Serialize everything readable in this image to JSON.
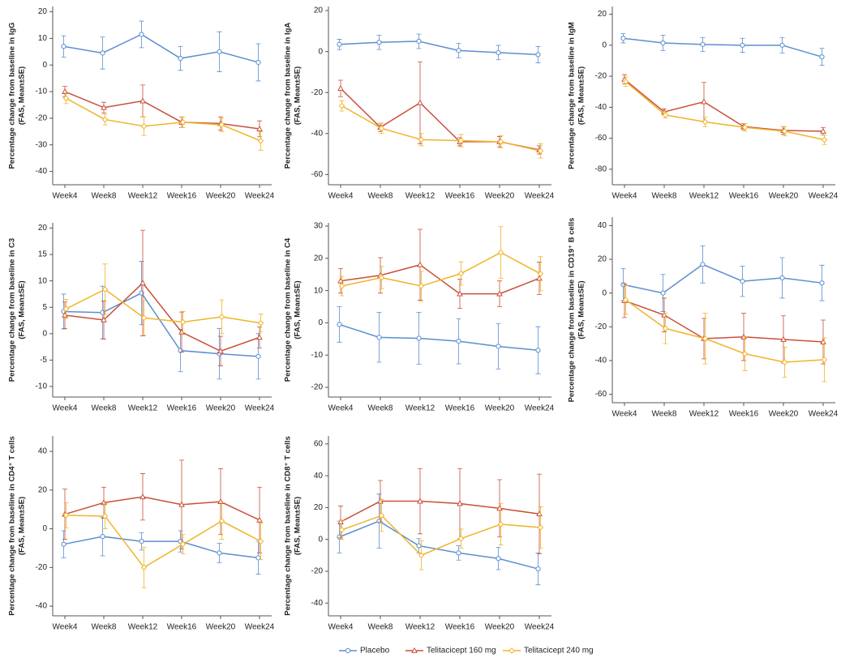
{
  "chart_data": [
    {
      "type": "line",
      "ylabel": [
        "Percentage change from baseline in IgG",
        "(FAS, Mean±SE)"
      ],
      "categories": [
        "Week4",
        "Week8",
        "Week12",
        "Week16",
        "Week20",
        "Week24"
      ],
      "ylim": [
        -45,
        22
      ],
      "yticks": [
        -40,
        -30,
        -20,
        -10,
        0,
        10,
        20
      ],
      "series": [
        {
          "name": "Placebo",
          "color": "#5b8fd0",
          "marker": "circle",
          "values": [
            7,
            4.5,
            11.5,
            2.5,
            5,
            1
          ],
          "errors": [
            4,
            6,
            5,
            4.5,
            7.5,
            7
          ]
        },
        {
          "name": "Telitacicept 160 mg",
          "color": "#c9503a",
          "marker": "triangle",
          "values": [
            -10,
            -16,
            -13.5,
            -21.5,
            -22,
            -24
          ],
          "errors": [
            2,
            2,
            6,
            2,
            2.5,
            3
          ]
        },
        {
          "name": "Telitacicept 240 mg",
          "color": "#f0b429",
          "marker": "diamond",
          "values": [
            -12.5,
            -20.5,
            -23,
            -21.5,
            -22.5,
            -28.5
          ],
          "errors": [
            2,
            2,
            3.5,
            2,
            2.5,
            3.5
          ]
        }
      ]
    },
    {
      "type": "line",
      "ylabel": [
        "Percentage change from baseline in IgA",
        "(FAS, Mean±SE)"
      ],
      "categories": [
        "Week4",
        "Week8",
        "Week12",
        "Week16",
        "Week20",
        "Week24"
      ],
      "ylim": [
        -65,
        22
      ],
      "yticks": [
        -60,
        -40,
        -20,
        0,
        20
      ],
      "series": [
        {
          "name": "Placebo",
          "color": "#5b8fd0",
          "marker": "circle",
          "values": [
            3.5,
            4.5,
            5,
            0.5,
            -0.5,
            -1.5
          ],
          "errors": [
            2.5,
            3.5,
            3.5,
            3.5,
            3.5,
            4
          ]
        },
        {
          "name": "Telitacicept 160 mg",
          "color": "#c9503a",
          "marker": "triangle",
          "values": [
            -18,
            -37,
            -25,
            -44,
            -44,
            -48
          ],
          "errors": [
            4,
            2,
            20,
            2,
            2.5,
            2
          ]
        },
        {
          "name": "Telitacicept 240 mg",
          "color": "#f0b429",
          "marker": "diamond",
          "values": [
            -26.5,
            -37.5,
            -43,
            -43.5,
            -44,
            -48.5
          ],
          "errors": [
            2.5,
            2.5,
            3,
            3,
            3,
            3.5
          ]
        }
      ]
    },
    {
      "type": "line",
      "ylabel": [
        "Percentage change from baseline in IgM",
        "(FAS, Mean±SE)"
      ],
      "categories": [
        "Week4",
        "Week8",
        "Week12",
        "Week16",
        "Week20",
        "Week24"
      ],
      "ylim": [
        -90,
        25
      ],
      "yticks": [
        -80,
        -60,
        -40,
        -20,
        0,
        20
      ],
      "series": [
        {
          "name": "Placebo",
          "color": "#5b8fd0",
          "marker": "circle",
          "values": [
            4.5,
            1.5,
            0.5,
            0,
            0,
            -7.5
          ],
          "errors": [
            3,
            5,
            4.5,
            4.5,
            5,
            5.5
          ]
        },
        {
          "name": "Telitacicept 160 mg",
          "color": "#c9503a",
          "marker": "triangle",
          "values": [
            -22,
            -43,
            -36.5,
            -52.5,
            -55,
            -55.5
          ],
          "errors": [
            3,
            2,
            12.5,
            2,
            2.5,
            2.5
          ]
        },
        {
          "name": "Telitacicept 240 mg",
          "color": "#f0b429",
          "marker": "diamond",
          "values": [
            -23.5,
            -45,
            -49.5,
            -53,
            -55.5,
            -61
          ],
          "errors": [
            3,
            2,
            3,
            2.5,
            3,
            3
          ]
        }
      ]
    },
    {
      "type": "line",
      "ylabel": [
        "Percentage change from baseline in C3",
        "(FAS, Mean±SE)"
      ],
      "categories": [
        "Week4",
        "Week8",
        "Week12",
        "Week16",
        "Week20",
        "Week24"
      ],
      "ylim": [
        -12,
        21
      ],
      "yticks": [
        -10,
        -5,
        0,
        5,
        10,
        15,
        20
      ],
      "series": [
        {
          "name": "Placebo",
          "color": "#5b8fd0",
          "marker": "circle",
          "values": [
            4.2,
            4,
            7.7,
            -3.2,
            -3.8,
            -4.3
          ],
          "errors": [
            3.3,
            5,
            6,
            4,
            4.8,
            4.3
          ]
        },
        {
          "name": "Telitacicept 160 mg",
          "color": "#c9503a",
          "marker": "triangle",
          "values": [
            3.5,
            2.6,
            9.6,
            0.3,
            -3.3,
            -0.7
          ],
          "errors": [
            2.5,
            3.6,
            10,
            3.8,
            2.8,
            2
          ]
        },
        {
          "name": "Telitacicept 240 mg",
          "color": "#f0b429",
          "marker": "diamond",
          "values": [
            4.7,
            8.4,
            3,
            2.2,
            3.2,
            2
          ],
          "errors": [
            1.8,
            4.8,
            3.3,
            2,
            3.2,
            1.7
          ]
        }
      ]
    },
    {
      "type": "line",
      "ylabel": [
        "Percentage change from baseline in C4",
        "(FAS, Mean±SE)"
      ],
      "categories": [
        "Week4",
        "Week8",
        "Week12",
        "Week16",
        "Week20",
        "Week24"
      ],
      "ylim": [
        -23,
        31
      ],
      "yticks": [
        -20,
        -10,
        0,
        10,
        20,
        30
      ],
      "series": [
        {
          "name": "Placebo",
          "color": "#5b8fd0",
          "marker": "circle",
          "values": [
            -0.5,
            -4.5,
            -4.8,
            -5.7,
            -7.3,
            -8.5
          ],
          "errors": [
            5.5,
            7.7,
            8,
            7,
            7,
            7.3
          ]
        },
        {
          "name": "Telitacicept 160 mg",
          "color": "#c9503a",
          "marker": "triangle",
          "values": [
            13,
            14.7,
            18,
            9,
            9,
            13.8
          ],
          "errors": [
            3.8,
            5.5,
            11,
            4.5,
            4,
            5
          ]
        },
        {
          "name": "Telitacicept 240 mg",
          "color": "#f0b429",
          "marker": "diamond",
          "values": [
            11.4,
            14,
            11.4,
            15.3,
            21.8,
            15.2
          ],
          "errors": [
            3,
            3.5,
            4.6,
            3.6,
            8,
            5.3
          ]
        }
      ]
    },
    {
      "type": "line",
      "ylabel": [
        "Percentage change from baseline in CD19⁺ B cells",
        "(FAS, Mean±SE)"
      ],
      "categories": [
        "Week4",
        "Week8",
        "Week12",
        "Week16",
        "Week20",
        "Week24"
      ],
      "ylim": [
        -65,
        45
      ],
      "yticks": [
        -60,
        -40,
        -20,
        0,
        20,
        40
      ],
      "series": [
        {
          "name": "Placebo",
          "color": "#5b8fd0",
          "marker": "circle",
          "values": [
            5,
            0,
            17,
            7,
            9,
            6
          ],
          "errors": [
            9.5,
            11,
            11,
            9,
            12,
            10.5
          ]
        },
        {
          "name": "Telitacicept 160 mg",
          "color": "#c9503a",
          "marker": "triangle",
          "values": [
            -4.5,
            -13,
            -27,
            -26,
            -27.5,
            -29
          ],
          "errors": [
            10,
            10,
            12,
            14,
            14,
            13
          ]
        },
        {
          "name": "Telitacicept 240 mg",
          "color": "#f0b429",
          "marker": "diamond",
          "values": [
            -4,
            -21,
            -27,
            -36,
            -41,
            -39.5
          ],
          "errors": [
            8.5,
            9,
            15,
            10,
            9,
            13
          ]
        }
      ]
    },
    {
      "type": "line",
      "ylabel": [
        "Percentage change from baseline in CD4⁺ T cells",
        "(FAS, Mean±SE)"
      ],
      "categories": [
        "Week4",
        "Week8",
        "Week12",
        "Week16",
        "Week20",
        "Week24"
      ],
      "ylim": [
        -45,
        48
      ],
      "yticks": [
        -40,
        -20,
        0,
        20,
        40
      ],
      "series": [
        {
          "name": "Placebo",
          "color": "#5b8fd0",
          "marker": "circle",
          "values": [
            -8,
            -4,
            -6.5,
            -6.5,
            -12.5,
            -15
          ],
          "errors": [
            7,
            10,
            4.5,
            5.5,
            5,
            8.5
          ]
        },
        {
          "name": "Telitacicept 160 mg",
          "color": "#c9503a",
          "marker": "triangle",
          "values": [
            7.5,
            13.5,
            16.5,
            12.5,
            14,
            4.5
          ],
          "errors": [
            13,
            8,
            12,
            23,
            17,
            17
          ]
        },
        {
          "name": "Telitacicept 240 mg",
          "color": "#f0b429",
          "marker": "diamond",
          "values": [
            7,
            6.5,
            -20,
            -8,
            4,
            -6.5
          ],
          "errors": [
            6.5,
            6.5,
            10.5,
            5,
            9.5,
            9.5
          ]
        }
      ]
    },
    {
      "type": "line",
      "ylabel": [
        "Percentage change from baseline in CD8⁺ T cells",
        "(FAS, Mean±SE)"
      ],
      "categories": [
        "Week4",
        "Week8",
        "Week12",
        "Week16",
        "Week20",
        "Week24"
      ],
      "ylim": [
        -48,
        65
      ],
      "yticks": [
        -40,
        -20,
        0,
        20,
        40,
        60
      ],
      "series": [
        {
          "name": "Placebo",
          "color": "#5b8fd0",
          "marker": "circle",
          "values": [
            1.5,
            11.5,
            -4,
            -8.5,
            -12,
            -18.5
          ],
          "errors": [
            10,
            17,
            4.5,
            4.5,
            7,
            10
          ]
        },
        {
          "name": "Telitacicept 160 mg",
          "color": "#c9503a",
          "marker": "triangle",
          "values": [
            11,
            24,
            24,
            22.5,
            19.5,
            16
          ],
          "errors": [
            10,
            13,
            20.5,
            22,
            18,
            25
          ]
        },
        {
          "name": "Telitacicept 240 mg",
          "color": "#f0b429",
          "marker": "diamond",
          "values": [
            6,
            15,
            -10,
            0.5,
            9.5,
            7.5
          ],
          "errors": [
            6,
            10,
            9,
            6,
            13,
            13
          ]
        }
      ]
    }
  ]
}
